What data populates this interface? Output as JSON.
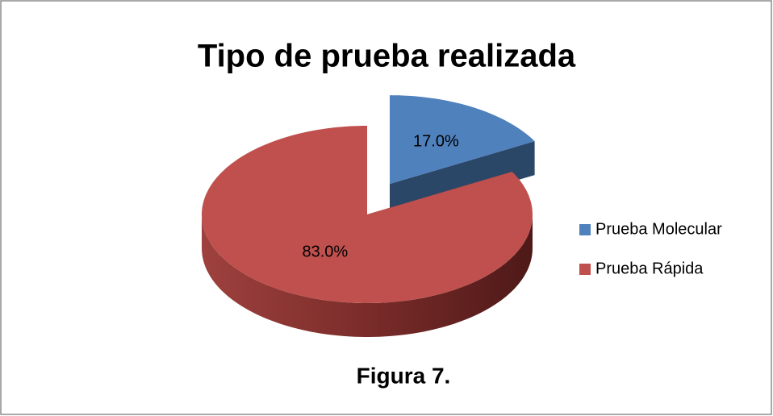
{
  "chart_data": {
    "type": "pie",
    "title": "Tipo de prueba realizada",
    "caption": "Figura 7.",
    "categories": [
      "Prueba Molecular",
      "Prueba Rápida"
    ],
    "values": [
      17,
      83
    ],
    "value_labels": [
      "17.0%",
      "83.0%"
    ],
    "colors": [
      "#4f81bd",
      "#c0504d"
    ],
    "legend": "right"
  }
}
